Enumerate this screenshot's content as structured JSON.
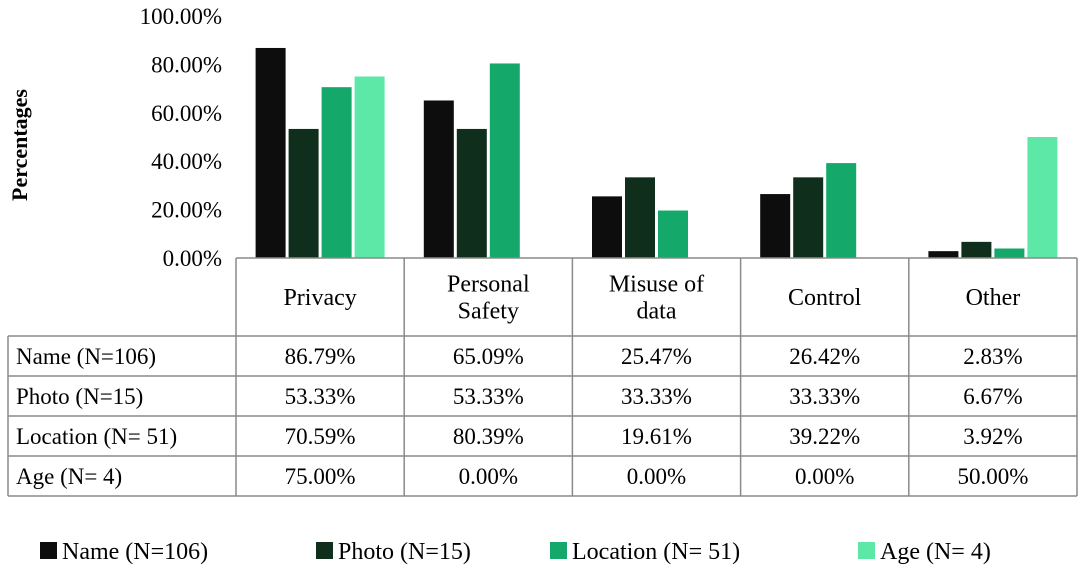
{
  "chart_data": {
    "type": "bar",
    "title": "",
    "xlabel": "",
    "ylabel": "Percentages",
    "ylim": [
      0,
      100
    ],
    "yticks": [
      "0.00%",
      "20.00%",
      "40.00%",
      "60.00%",
      "80.00%",
      "100.00%"
    ],
    "ytick_values": [
      0,
      20,
      40,
      60,
      80,
      100
    ],
    "grid": false,
    "legend_position": "bottom",
    "categories": [
      [
        "Privacy"
      ],
      [
        "Personal",
        "Safety"
      ],
      [
        "Misuse of",
        "data"
      ],
      [
        "Control"
      ],
      [
        "Other"
      ]
    ],
    "series": [
      {
        "name": "Name (N=106)",
        "color": "#0d0d0d",
        "values": [
          86.79,
          65.09,
          25.47,
          26.42,
          2.83
        ],
        "labels": [
          "86.79%",
          "65.09%",
          "25.47%",
          "26.42%",
          "2.83%"
        ]
      },
      {
        "name": "Photo (N=15)",
        "color": "#0f2e1c",
        "values": [
          53.33,
          53.33,
          33.33,
          33.33,
          6.67
        ],
        "labels": [
          "53.33%",
          "53.33%",
          "33.33%",
          "33.33%",
          "6.67%"
        ]
      },
      {
        "name": "Location (N= 51)",
        "color": "#14a86a",
        "values": [
          70.59,
          80.39,
          19.61,
          39.22,
          3.92
        ],
        "labels": [
          "70.59%",
          "80.39%",
          "19.61%",
          "39.22%",
          "3.92%"
        ]
      },
      {
        "name": "Age (N= 4)",
        "color": "#5ee8a8",
        "values": [
          75.0,
          0.0,
          0.0,
          0.0,
          50.0
        ],
        "labels": [
          "75.00%",
          "0.00%",
          "0.00%",
          "0.00%",
          "50.00%"
        ]
      }
    ]
  }
}
